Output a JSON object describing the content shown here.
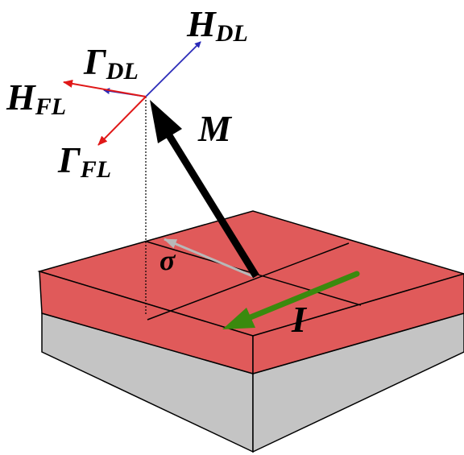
{
  "labels": {
    "h_dl": {
      "main": "H",
      "sub": "DL"
    },
    "gamma_dl": {
      "main": "Γ",
      "sub": "DL"
    },
    "h_fl": {
      "main": "H",
      "sub": "FL"
    },
    "gamma_fl": {
      "main": "Γ",
      "sub": "FL"
    },
    "magnetization": "M",
    "spin_polarization": "σ",
    "current": "I"
  },
  "colors": {
    "top_layer": "#e05a5a",
    "bottom_layer": "#c4c4c4",
    "outline": "#000000",
    "h_dl_arrow": "#2a2ab8",
    "gamma_dl_arrow": "#2a2ab8",
    "fl_arrows": "#e01818",
    "magnetization_arrow": "#000000",
    "sigma_arrow": "#b8b8b8",
    "current_arrow": "#3a8a0e"
  }
}
